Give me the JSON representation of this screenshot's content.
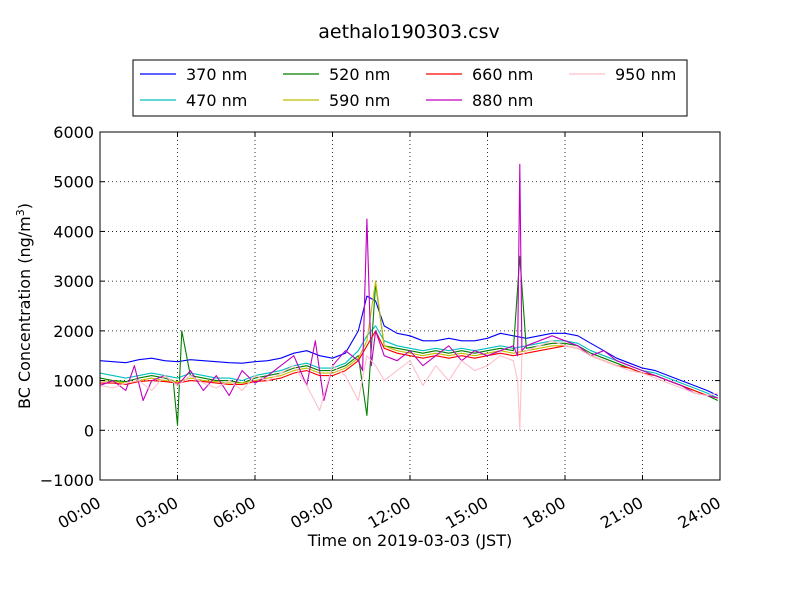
{
  "chart_data": {
    "type": "line",
    "title": "aethalo190303.csv",
    "xlabel": "Time on 2019-03-03 (JST)",
    "ylabel_main": "BC Concentration (ng/m",
    "ylabel_sup": "3",
    "ylabel_close": ")",
    "xlim": [
      "00:00",
      "24:00"
    ],
    "ylim": [
      -1000,
      6000
    ],
    "grid": true,
    "legend_position": "top-center",
    "x_ticks": [
      "00:00",
      "03:00",
      "06:00",
      "09:00",
      "12:00",
      "15:00",
      "18:00",
      "21:00",
      "24:00"
    ],
    "y_ticks": [
      "−1000",
      "0",
      "1000",
      "2000",
      "3000",
      "4000",
      "5000",
      "6000"
    ],
    "series": [
      {
        "name": "370 nm",
        "color": "#0000ff",
        "x": [
          "00:00",
          "00:30",
          "01:00",
          "01:30",
          "02:00",
          "02:30",
          "03:00",
          "03:30",
          "04:00",
          "04:30",
          "05:00",
          "05:30",
          "06:00",
          "06:30",
          "07:00",
          "07:30",
          "08:00",
          "08:30",
          "09:00",
          "09:30",
          "10:00",
          "10:20",
          "10:40",
          "11:00",
          "11:30",
          "12:00",
          "12:30",
          "13:00",
          "13:30",
          "14:00",
          "14:30",
          "15:00",
          "15:30",
          "16:00",
          "16:30",
          "17:00",
          "17:30",
          "18:00",
          "18:30",
          "19:00",
          "19:30",
          "20:00",
          "20:30",
          "21:00",
          "21:30",
          "22:00",
          "22:30",
          "23:00",
          "23:30",
          "23:55"
        ],
        "values": [
          1400,
          1380,
          1360,
          1420,
          1450,
          1400,
          1380,
          1420,
          1400,
          1380,
          1360,
          1350,
          1380,
          1400,
          1450,
          1550,
          1600,
          1500,
          1450,
          1550,
          2000,
          2700,
          2600,
          2100,
          1950,
          1900,
          1800,
          1800,
          1850,
          1800,
          1800,
          1850,
          1950,
          1900,
          1850,
          1900,
          1950,
          1950,
          1900,
          1750,
          1600,
          1450,
          1350,
          1250,
          1200,
          1100,
          1000,
          900,
          800,
          700
        ]
      },
      {
        "name": "470 nm",
        "color": "#00bfbf",
        "x": [
          "00:00",
          "00:30",
          "01:00",
          "01:30",
          "02:00",
          "02:30",
          "03:00",
          "03:30",
          "04:00",
          "04:30",
          "05:00",
          "05:30",
          "06:00",
          "06:30",
          "07:00",
          "07:30",
          "08:00",
          "08:30",
          "09:00",
          "09:30",
          "10:00",
          "10:20",
          "10:40",
          "11:00",
          "11:30",
          "12:00",
          "12:30",
          "13:00",
          "13:30",
          "14:00",
          "14:30",
          "15:00",
          "15:30",
          "16:00",
          "16:30",
          "17:00",
          "17:30",
          "18:00",
          "18:30",
          "19:00",
          "19:30",
          "20:00",
          "20:30",
          "21:00",
          "21:30",
          "22:00",
          "22:30",
          "23:00",
          "23:30",
          "23:55"
        ],
        "values": [
          1150,
          1100,
          1050,
          1100,
          1150,
          1100,
          1050,
          1150,
          1100,
          1050,
          1050,
          1000,
          1100,
          1150,
          1200,
          1300,
          1350,
          1250,
          1250,
          1350,
          1600,
          1900,
          2100,
          1800,
          1700,
          1650,
          1600,
          1650,
          1600,
          1650,
          1600,
          1650,
          1700,
          1650,
          1700,
          1750,
          1800,
          1800,
          1750,
          1600,
          1500,
          1400,
          1300,
          1200,
          1150,
          1050,
          950,
          850,
          750,
          650
        ]
      },
      {
        "name": "520 nm",
        "color": "#007f00",
        "x": [
          "00:00",
          "00:30",
          "01:00",
          "01:30",
          "02:00",
          "02:30",
          "02:50",
          "03:00",
          "03:10",
          "03:30",
          "04:00",
          "04:30",
          "05:00",
          "05:30",
          "06:00",
          "06:30",
          "07:00",
          "07:30",
          "08:00",
          "08:30",
          "09:00",
          "09:30",
          "10:00",
          "10:20",
          "10:40",
          "11:00",
          "11:30",
          "12:00",
          "12:30",
          "13:00",
          "13:30",
          "14:00",
          "14:30",
          "15:00",
          "15:30",
          "16:00",
          "16:15",
          "16:30",
          "17:00",
          "17:30",
          "18:00",
          "18:30",
          "19:00",
          "19:30",
          "20:00",
          "20:30",
          "21:00",
          "21:30",
          "22:00",
          "22:30",
          "23:00",
          "23:30",
          "23:55"
        ],
        "values": [
          1050,
          1000,
          980,
          1050,
          1100,
          1050,
          1000,
          100,
          2000,
          1100,
          1050,
          1000,
          1000,
          950,
          1050,
          1100,
          1150,
          1250,
          1300,
          1200,
          1200,
          1300,
          1500,
          300,
          2950,
          1700,
          1650,
          1600,
          1550,
          1600,
          1550,
          1600,
          1550,
          1600,
          1650,
          1600,
          3500,
          1650,
          1700,
          1750,
          1750,
          1700,
          1550,
          1450,
          1350,
          1250,
          1150,
          1100,
          1000,
          900,
          800,
          700,
          600
        ]
      },
      {
        "name": "590 nm",
        "color": "#bfbf00",
        "x": [
          "00:00",
          "00:30",
          "01:00",
          "01:30",
          "02:00",
          "02:30",
          "03:00",
          "03:30",
          "04:00",
          "04:30",
          "05:00",
          "05:30",
          "06:00",
          "06:30",
          "07:00",
          "07:30",
          "08:00",
          "08:30",
          "09:00",
          "09:30",
          "10:00",
          "10:20",
          "10:40",
          "11:00",
          "11:30",
          "12:00",
          "12:30",
          "13:00",
          "13:30",
          "14:00",
          "14:30",
          "15:00",
          "15:30",
          "16:00",
          "16:30",
          "17:00",
          "17:30",
          "18:00",
          "18:30",
          "19:00",
          "19:30",
          "20:00",
          "20:30",
          "21:00",
          "21:30",
          "22:00",
          "22:30",
          "23:00",
          "23:30",
          "23:55"
        ],
        "values": [
          1000,
          980,
          950,
          1000,
          1050,
          1000,
          980,
          1050,
          1000,
          980,
          950,
          950,
          1000,
          1050,
          1100,
          1200,
          1250,
          1150,
          1150,
          1250,
          1450,
          1800,
          3000,
          1700,
          1600,
          1550,
          1500,
          1550,
          1500,
          1550,
          1500,
          1550,
          1600,
          1550,
          1600,
          1650,
          1700,
          1700,
          1650,
          1500,
          1400,
          1300,
          1250,
          1150,
          1100,
          1000,
          900,
          800,
          700,
          650
        ]
      },
      {
        "name": "660 nm",
        "color": "#ff0000",
        "x": [
          "00:00",
          "00:30",
          "01:00",
          "01:30",
          "02:00",
          "02:30",
          "03:00",
          "03:30",
          "04:00",
          "04:30",
          "05:00",
          "05:30",
          "06:00",
          "06:30",
          "07:00",
          "07:30",
          "08:00",
          "08:30",
          "09:00",
          "09:30",
          "10:00",
          "10:20",
          "10:40",
          "11:00",
          "11:30",
          "12:00",
          "12:30",
          "13:00",
          "13:30",
          "14:00",
          "14:30",
          "15:00",
          "15:30",
          "16:00",
          "16:30",
          "17:00",
          "17:30",
          "18:00",
          "18:30",
          "19:00",
          "19:30",
          "20:00",
          "20:30",
          "21:00",
          "21:30",
          "22:00",
          "22:30",
          "23:00",
          "23:30",
          "23:55"
        ],
        "values": [
          950,
          950,
          920,
          980,
          1000,
          980,
          950,
          1000,
          980,
          950,
          920,
          920,
          980,
          1000,
          1050,
          1150,
          1200,
          1100,
          1100,
          1200,
          1400,
          1700,
          2000,
          1650,
          1550,
          1500,
          1450,
          1500,
          1450,
          1500,
          1450,
          1500,
          1550,
          1500,
          1550,
          1600,
          1650,
          1700,
          1650,
          1500,
          1400,
          1300,
          1250,
          1150,
          1100,
          1000,
          900,
          800,
          700,
          650
        ]
      },
      {
        "name": "880 nm",
        "color": "#bf00bf",
        "x": [
          "00:00",
          "00:30",
          "01:00",
          "01:20",
          "01:40",
          "02:00",
          "02:30",
          "03:00",
          "03:30",
          "04:00",
          "04:30",
          "05:00",
          "05:30",
          "06:00",
          "06:30",
          "07:00",
          "07:30",
          "08:00",
          "08:20",
          "08:40",
          "09:00",
          "09:30",
          "10:00",
          "10:10",
          "10:20",
          "10:30",
          "10:40",
          "11:00",
          "11:30",
          "12:00",
          "12:30",
          "13:00",
          "13:30",
          "14:00",
          "14:30",
          "15:00",
          "15:30",
          "16:00",
          "16:10",
          "16:15",
          "16:20",
          "16:30",
          "17:00",
          "17:30",
          "18:00",
          "18:30",
          "19:00",
          "19:30",
          "20:00",
          "20:30",
          "21:00",
          "21:30",
          "22:00",
          "22:30",
          "23:00",
          "23:30",
          "23:55"
        ],
        "values": [
          900,
          1000,
          800,
          1300,
          600,
          1000,
          1100,
          900,
          1200,
          800,
          1100,
          700,
          1200,
          950,
          1100,
          1300,
          1500,
          900,
          1800,
          600,
          1300,
          1600,
          1400,
          1200,
          4250,
          1300,
          2000,
          1500,
          1400,
          1600,
          1300,
          1500,
          1700,
          1400,
          1600,
          1500,
          1600,
          1700,
          1500,
          5350,
          1600,
          1700,
          1800,
          1900,
          1800,
          1700,
          1500,
          1600,
          1400,
          1300,
          1200,
          1100,
          1000,
          900,
          750,
          700,
          650
        ]
      },
      {
        "name": "950 nm",
        "color": "#ffc0cb",
        "x": [
          "00:00",
          "00:30",
          "01:00",
          "01:30",
          "02:00",
          "02:30",
          "03:00",
          "03:30",
          "04:00",
          "04:30",
          "05:00",
          "05:30",
          "06:00",
          "06:30",
          "07:00",
          "07:30",
          "08:00",
          "08:30",
          "09:00",
          "09:30",
          "10:00",
          "10:20",
          "10:40",
          "11:00",
          "11:30",
          "12:00",
          "12:30",
          "13:00",
          "13:30",
          "14:00",
          "14:30",
          "15:00",
          "15:30",
          "16:00",
          "16:10",
          "16:15",
          "16:20",
          "16:30",
          "17:00",
          "17:30",
          "18:00",
          "18:30",
          "19:00",
          "19:30",
          "20:00",
          "20:30",
          "21:00",
          "21:30",
          "22:00",
          "22:30",
          "23:00",
          "23:30",
          "23:55"
        ],
        "values": [
          900,
          850,
          950,
          1000,
          800,
          1100,
          900,
          1100,
          950,
          850,
          1000,
          800,
          1100,
          1000,
          1150,
          1300,
          900,
          400,
          1300,
          1100,
          600,
          1500,
          1300,
          1000,
          1200,
          1400,
          900,
          1300,
          1000,
          1400,
          1200,
          1300,
          1500,
          1400,
          1000,
          0,
          1500,
          1600,
          1700,
          1800,
          1700,
          1650,
          1500,
          1400,
          1300,
          1200,
          1150,
          1050,
          950,
          850,
          750,
          700,
          750
        ]
      }
    ]
  }
}
